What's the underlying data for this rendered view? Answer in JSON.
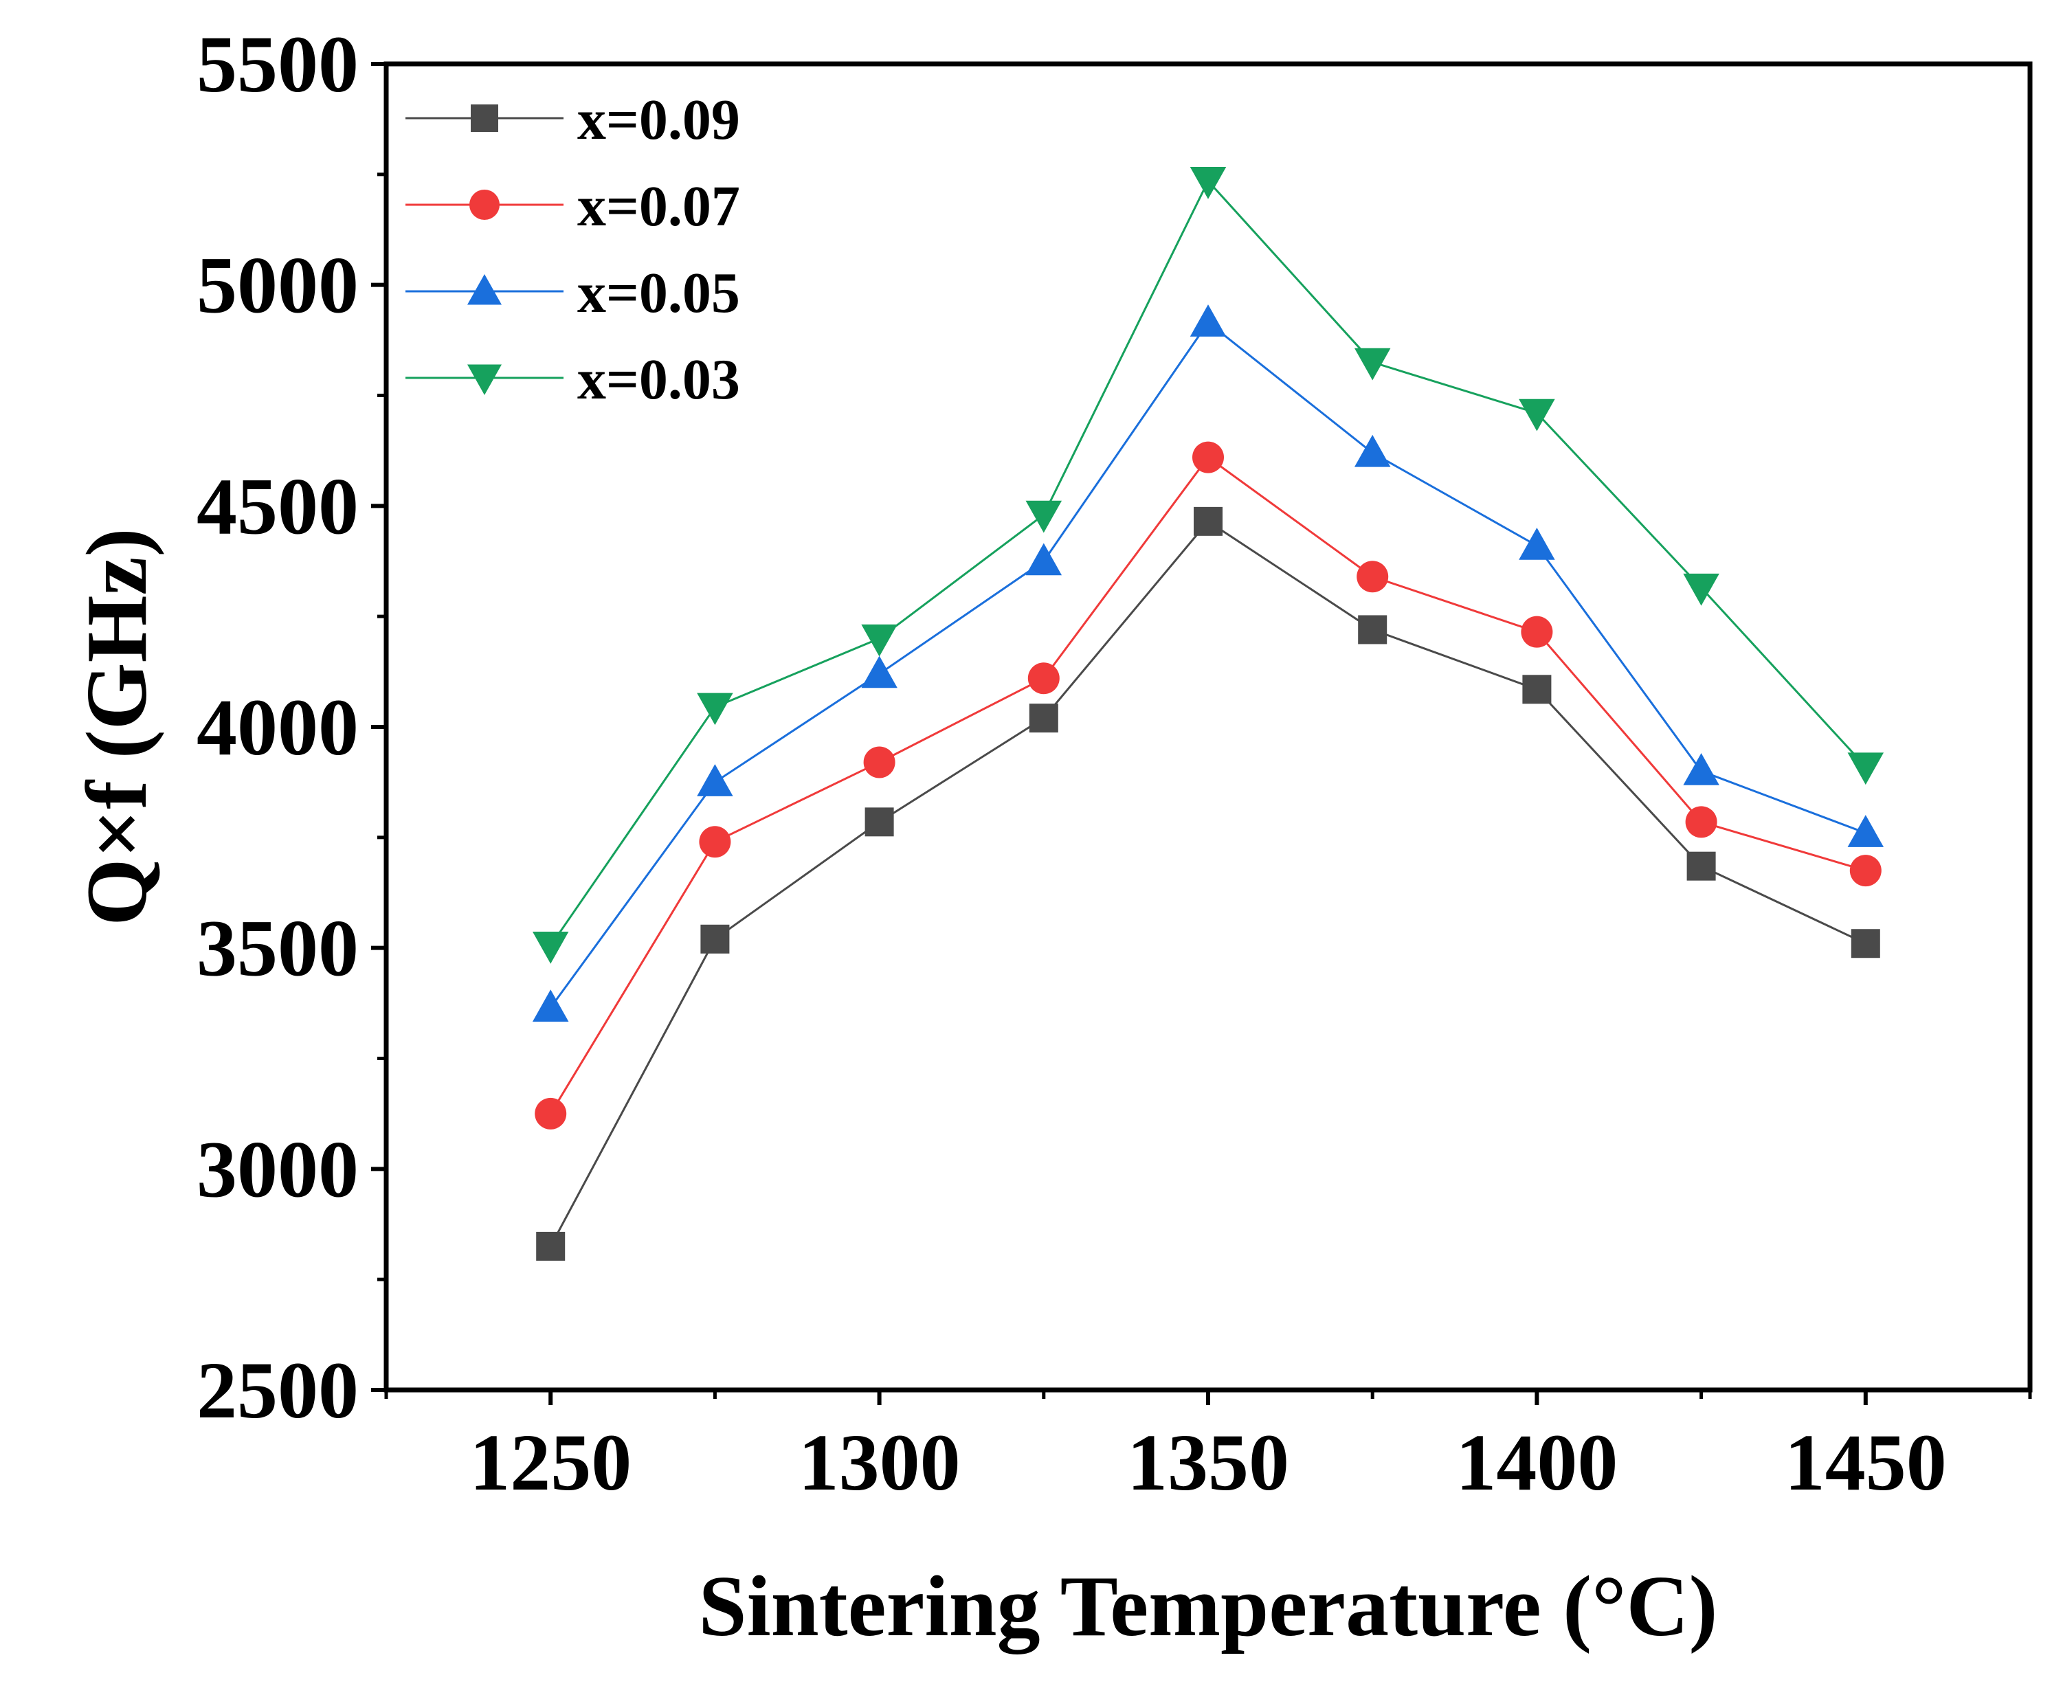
{
  "chart_data": {
    "type": "line",
    "title": "",
    "xlabel": "Sintering Temperature (°C)",
    "ylabel": "Q×f (GHz)",
    "xlim": [
      1225,
      1475
    ],
    "ylim": [
      2500,
      5500
    ],
    "x_ticks": [
      "1250",
      "1300",
      "1350",
      "1400",
      "1450"
    ],
    "y_ticks": [
      "2500",
      "3000",
      "3500",
      "4000",
      "4500",
      "5000",
      "5500"
    ],
    "x": [
      1250,
      1275,
      1300,
      1325,
      1350,
      1375,
      1400,
      1425,
      1450
    ],
    "legend_position": "top-left",
    "series": [
      {
        "name": "x=0.09",
        "marker": "square",
        "color": "#4a4a4a",
        "values": [
          2825,
          3520,
          3785,
          4020,
          4465,
          4220,
          4085,
          3685,
          3510
        ]
      },
      {
        "name": "x=0.07",
        "marker": "circle",
        "color": "#f03a3a",
        "values": [
          3125,
          3740,
          3920,
          4110,
          4610,
          4340,
          4215,
          3785,
          3675
        ]
      },
      {
        "name": "x=0.05",
        "marker": "triangle-up",
        "color": "#1a6fdc",
        "values": [
          3365,
          3875,
          4120,
          4375,
          4915,
          4620,
          4410,
          3900,
          3760
        ]
      },
      {
        "name": "x=0.03",
        "marker": "triangle-down",
        "color": "#16a15d",
        "values": [
          3505,
          4045,
          4200,
          4480,
          5235,
          4825,
          4710,
          4315,
          3910
        ]
      }
    ]
  }
}
